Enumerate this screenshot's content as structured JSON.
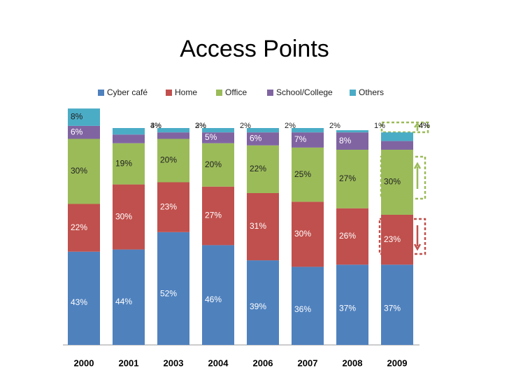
{
  "chart_data": {
    "type": "stacked_bar",
    "title": "Access Points",
    "categories": [
      "2000",
      "2001",
      "2003",
      "2004",
      "2006",
      "2007",
      "2008",
      "2009"
    ],
    "series": [
      {
        "name": "Cyber café",
        "color": "#4f81bd",
        "values": [
          43,
          44,
          52,
          46,
          39,
          36,
          37,
          37
        ],
        "value_labels": [
          "43%",
          "44%",
          "52%",
          "46%",
          "39%",
          "36%",
          "37%",
          "37%"
        ]
      },
      {
        "name": "Home",
        "color": "#c0504d",
        "values": [
          22,
          30,
          23,
          27,
          31,
          30,
          26,
          23
        ],
        "value_labels": [
          "22%",
          "30%",
          "23%",
          "27%",
          "31%",
          "30%",
          "26%",
          "23%"
        ]
      },
      {
        "name": "Office",
        "color": "#9bbb59",
        "values": [
          30,
          19,
          20,
          20,
          22,
          25,
          27,
          30
        ],
        "value_labels": [
          "30%",
          "19%",
          "20%",
          "20%",
          "22%",
          "25%",
          "27%",
          "30%"
        ]
      },
      {
        "name": "School/College",
        "color": "#8064a2",
        "values": [
          6,
          4,
          3,
          5,
          6,
          7,
          8,
          4
        ],
        "value_labels": [
          "6%",
          "4%",
          "3%",
          "5%",
          "6%",
          "7%",
          "8%",
          "4%"
        ]
      },
      {
        "name": "Others",
        "color": "#4bacc6",
        "values": [
          8,
          3,
          2,
          2,
          2,
          2,
          1,
          4
        ],
        "value_labels": [
          "8%",
          "3%",
          "2%",
          "2%",
          "2%",
          "2%",
          "1%",
          "4%"
        ]
      }
    ],
    "legend": "top"
  }
}
